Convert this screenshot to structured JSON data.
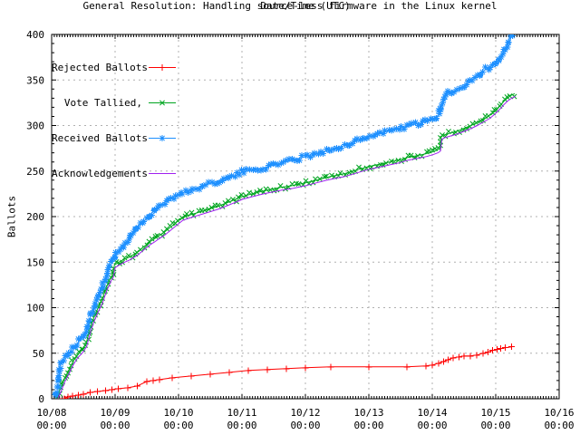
{
  "chart_data": {
    "type": "line",
    "title": "General Resolution: Handling source-less firmware in the Linux kernel",
    "xlabel": "Date/Time (UTC)",
    "ylabel": "Ballots",
    "x_tick_labels": [
      "10/08",
      "10/09",
      "10/10",
      "10/11",
      "10/12",
      "10/13",
      "10/14",
      "10/15",
      "10/16"
    ],
    "x_tick_sublabel": "00:00",
    "y_ticks": [
      0,
      50,
      100,
      150,
      200,
      250,
      300,
      350,
      400
    ],
    "ylim": [
      0,
      400
    ],
    "xlim_days": [
      0,
      8
    ],
    "x_minor_ticks_per_day": 24,
    "y_minor_step": 10,
    "grid": true,
    "legend_position": "top-left",
    "colors": {
      "background": "#ffffff",
      "border": "#000000",
      "grid": "#b0b0b0",
      "text": "#000000"
    },
    "series": [
      {
        "name": "Rejected Ballots",
        "color": "#ff0000",
        "marker": "plus",
        "marker_step": 0,
        "points": [
          [
            0.1,
            0
          ],
          [
            0.2,
            0
          ],
          [
            0.26,
            2
          ],
          [
            0.33,
            3
          ],
          [
            0.42,
            4
          ],
          [
            0.5,
            5
          ],
          [
            0.61,
            7
          ],
          [
            0.72,
            8
          ],
          [
            0.85,
            9
          ],
          [
            0.95,
            10
          ],
          [
            1.05,
            11
          ],
          [
            1.2,
            12
          ],
          [
            1.35,
            14
          ],
          [
            1.5,
            19
          ],
          [
            1.6,
            20
          ],
          [
            1.7,
            21
          ],
          [
            1.9,
            23
          ],
          [
            2.2,
            25
          ],
          [
            2.5,
            27
          ],
          [
            2.8,
            29
          ],
          [
            3.1,
            31
          ],
          [
            3.4,
            32
          ],
          [
            3.7,
            33
          ],
          [
            4.0,
            34
          ],
          [
            4.4,
            35
          ],
          [
            5.0,
            35
          ],
          [
            5.6,
            35
          ],
          [
            5.9,
            36
          ],
          [
            6.0,
            37
          ],
          [
            6.1,
            39
          ],
          [
            6.18,
            41
          ],
          [
            6.25,
            43
          ],
          [
            6.33,
            45
          ],
          [
            6.42,
            46
          ],
          [
            6.5,
            47
          ],
          [
            6.6,
            47
          ],
          [
            6.7,
            48
          ],
          [
            6.8,
            50
          ],
          [
            6.88,
            51
          ],
          [
            6.95,
            53
          ],
          [
            7.02,
            54
          ],
          [
            7.08,
            55
          ],
          [
            7.15,
            56
          ],
          [
            7.25,
            57
          ]
        ]
      },
      {
        "name": "Vote Tallied,",
        "color": "#00a520",
        "marker": "cross",
        "marker_step": 4,
        "points": [
          [
            0.09,
            0
          ],
          [
            0.12,
            8
          ],
          [
            0.16,
            15
          ],
          [
            0.2,
            22
          ],
          [
            0.26,
            30
          ],
          [
            0.33,
            40
          ],
          [
            0.4,
            48
          ],
          [
            0.47,
            53
          ],
          [
            0.54,
            60
          ],
          [
            0.61,
            78
          ],
          [
            0.66,
            88
          ],
          [
            0.72,
            98
          ],
          [
            0.79,
            108
          ],
          [
            0.86,
            122
          ],
          [
            0.93,
            133
          ],
          [
            0.96,
            136
          ],
          [
            0.99,
            147
          ],
          [
            1.06,
            150
          ],
          [
            1.14,
            153
          ],
          [
            1.21,
            155
          ],
          [
            1.33,
            160
          ],
          [
            1.4,
            164
          ],
          [
            1.47,
            168
          ],
          [
            1.54,
            172
          ],
          [
            1.61,
            175
          ],
          [
            1.69,
            179
          ],
          [
            1.76,
            182
          ],
          [
            1.83,
            186
          ],
          [
            1.9,
            190
          ],
          [
            1.97,
            194
          ],
          [
            2.06,
            199
          ],
          [
            2.19,
            202
          ],
          [
            2.33,
            205
          ],
          [
            2.47,
            208
          ],
          [
            2.61,
            211
          ],
          [
            2.76,
            215
          ],
          [
            2.9,
            219
          ],
          [
            3.0,
            222
          ],
          [
            3.16,
            225
          ],
          [
            3.33,
            228
          ],
          [
            3.47,
            230
          ],
          [
            3.61,
            232
          ],
          [
            3.8,
            234
          ],
          [
            4.0,
            237
          ],
          [
            4.16,
            240
          ],
          [
            4.33,
            243
          ],
          [
            4.47,
            245
          ],
          [
            4.61,
            247
          ],
          [
            4.8,
            251
          ],
          [
            5.0,
            255
          ],
          [
            5.2,
            258
          ],
          [
            5.33,
            260
          ],
          [
            5.47,
            262
          ],
          [
            5.61,
            265
          ],
          [
            5.76,
            267
          ],
          [
            5.9,
            269
          ],
          [
            6.0,
            271
          ],
          [
            6.08,
            273
          ],
          [
            6.12,
            275
          ],
          [
            6.14,
            288
          ],
          [
            6.2,
            290
          ],
          [
            6.3,
            292
          ],
          [
            6.4,
            294
          ],
          [
            6.47,
            296
          ],
          [
            6.54,
            298
          ],
          [
            6.61,
            300
          ],
          [
            6.7,
            303
          ],
          [
            6.8,
            307
          ],
          [
            6.9,
            311
          ],
          [
            7.0,
            317
          ],
          [
            7.07,
            322
          ],
          [
            7.12,
            326
          ],
          [
            7.18,
            330
          ],
          [
            7.24,
            333
          ],
          [
            7.3,
            335
          ]
        ]
      },
      {
        "name": "Received Ballots",
        "color": "#1e90ff",
        "marker": "asterisk",
        "marker_step": 3,
        "points": [
          [
            0.07,
            0
          ],
          [
            0.09,
            10
          ],
          [
            0.11,
            25
          ],
          [
            0.13,
            38
          ],
          [
            0.16,
            42
          ],
          [
            0.19,
            44
          ],
          [
            0.23,
            47
          ],
          [
            0.26,
            50
          ],
          [
            0.3,
            52
          ],
          [
            0.33,
            55
          ],
          [
            0.4,
            60
          ],
          [
            0.47,
            66
          ],
          [
            0.5,
            70
          ],
          [
            0.54,
            74
          ],
          [
            0.57,
            80
          ],
          [
            0.61,
            90
          ],
          [
            0.64,
            96
          ],
          [
            0.69,
            104
          ],
          [
            0.73,
            110
          ],
          [
            0.76,
            117
          ],
          [
            0.8,
            124
          ],
          [
            0.83,
            130
          ],
          [
            0.87,
            136
          ],
          [
            0.9,
            142
          ],
          [
            0.93,
            147
          ],
          [
            0.97,
            152
          ],
          [
            1.0,
            157
          ],
          [
            1.04,
            161
          ],
          [
            1.09,
            165
          ],
          [
            1.14,
            168
          ],
          [
            1.19,
            172
          ],
          [
            1.26,
            180
          ],
          [
            1.33,
            188
          ],
          [
            1.4,
            192
          ],
          [
            1.47,
            196
          ],
          [
            1.54,
            200
          ],
          [
            1.61,
            207
          ],
          [
            1.69,
            212
          ],
          [
            1.76,
            215
          ],
          [
            1.83,
            218
          ],
          [
            1.9,
            221
          ],
          [
            2.0,
            224
          ],
          [
            2.1,
            227
          ],
          [
            2.19,
            229
          ],
          [
            2.33,
            232
          ],
          [
            2.47,
            236
          ],
          [
            2.61,
            239
          ],
          [
            2.76,
            242
          ],
          [
            2.9,
            245
          ],
          [
            3.0,
            249
          ],
          [
            3.16,
            251
          ],
          [
            3.33,
            253
          ],
          [
            3.47,
            256
          ],
          [
            3.61,
            259
          ],
          [
            3.8,
            262
          ],
          [
            4.0,
            266
          ],
          [
            4.16,
            269
          ],
          [
            4.33,
            272
          ],
          [
            4.47,
            275
          ],
          [
            4.61,
            278
          ],
          [
            4.8,
            283
          ],
          [
            5.0,
            288
          ],
          [
            5.16,
            291
          ],
          [
            5.33,
            294
          ],
          [
            5.47,
            297
          ],
          [
            5.61,
            299
          ],
          [
            5.76,
            302
          ],
          [
            5.9,
            304
          ],
          [
            6.0,
            306
          ],
          [
            6.06,
            308
          ],
          [
            6.1,
            312
          ],
          [
            6.16,
            325
          ],
          [
            6.21,
            336
          ],
          [
            6.26,
            338
          ],
          [
            6.31,
            337
          ],
          [
            6.37,
            338
          ],
          [
            6.43,
            339
          ],
          [
            6.47,
            341
          ],
          [
            6.54,
            345
          ],
          [
            6.61,
            349
          ],
          [
            6.69,
            354
          ],
          [
            6.76,
            358
          ],
          [
            6.83,
            361
          ],
          [
            6.9,
            364
          ],
          [
            6.97,
            367
          ],
          [
            7.0,
            369
          ],
          [
            7.05,
            374
          ],
          [
            7.1,
            379
          ],
          [
            7.14,
            384
          ],
          [
            7.18,
            390
          ],
          [
            7.22,
            395
          ],
          [
            7.26,
            400
          ]
        ]
      },
      {
        "name": "Acknowledgements",
        "color": "#a020f0",
        "marker": "none",
        "marker_step": 0,
        "points": [
          [
            0.1,
            0
          ],
          [
            0.13,
            5
          ],
          [
            0.17,
            12
          ],
          [
            0.21,
            19
          ],
          [
            0.27,
            27
          ],
          [
            0.34,
            37
          ],
          [
            0.41,
            45
          ],
          [
            0.48,
            50
          ],
          [
            0.55,
            57
          ],
          [
            0.62,
            75
          ],
          [
            0.67,
            85
          ],
          [
            0.73,
            95
          ],
          [
            0.8,
            105
          ],
          [
            0.87,
            119
          ],
          [
            0.94,
            130
          ],
          [
            0.97,
            133
          ],
          [
            1.0,
            144
          ],
          [
            1.07,
            147
          ],
          [
            1.15,
            150
          ],
          [
            1.22,
            152
          ],
          [
            1.34,
            157
          ],
          [
            1.41,
            161
          ],
          [
            1.48,
            165
          ],
          [
            1.55,
            169
          ],
          [
            1.62,
            172
          ],
          [
            1.7,
            176
          ],
          [
            1.77,
            179
          ],
          [
            1.84,
            183
          ],
          [
            1.91,
            187
          ],
          [
            1.98,
            191
          ],
          [
            2.07,
            196
          ],
          [
            2.2,
            199
          ],
          [
            2.34,
            202
          ],
          [
            2.48,
            205
          ],
          [
            2.62,
            208
          ],
          [
            2.77,
            212
          ],
          [
            2.91,
            216
          ],
          [
            3.01,
            219
          ],
          [
            3.17,
            222
          ],
          [
            3.34,
            225
          ],
          [
            3.48,
            227
          ],
          [
            3.62,
            229
          ],
          [
            3.81,
            231
          ],
          [
            4.01,
            234
          ],
          [
            4.17,
            237
          ],
          [
            4.34,
            240
          ],
          [
            4.48,
            242
          ],
          [
            4.62,
            244
          ],
          [
            4.81,
            248
          ],
          [
            5.01,
            252
          ],
          [
            5.21,
            255
          ],
          [
            5.34,
            257
          ],
          [
            5.48,
            259
          ],
          [
            5.62,
            262
          ],
          [
            5.77,
            264
          ],
          [
            5.91,
            266
          ],
          [
            6.01,
            268
          ],
          [
            6.09,
            270
          ],
          [
            6.13,
            272
          ],
          [
            6.15,
            285
          ],
          [
            6.21,
            287
          ],
          [
            6.31,
            289
          ],
          [
            6.41,
            291
          ],
          [
            6.48,
            293
          ],
          [
            6.55,
            295
          ],
          [
            6.62,
            297
          ],
          [
            6.71,
            300
          ],
          [
            6.81,
            304
          ],
          [
            6.91,
            308
          ],
          [
            7.01,
            314
          ],
          [
            7.08,
            319
          ],
          [
            7.13,
            323
          ],
          [
            7.19,
            327
          ],
          [
            7.25,
            330
          ],
          [
            7.31,
            332
          ]
        ]
      }
    ]
  }
}
